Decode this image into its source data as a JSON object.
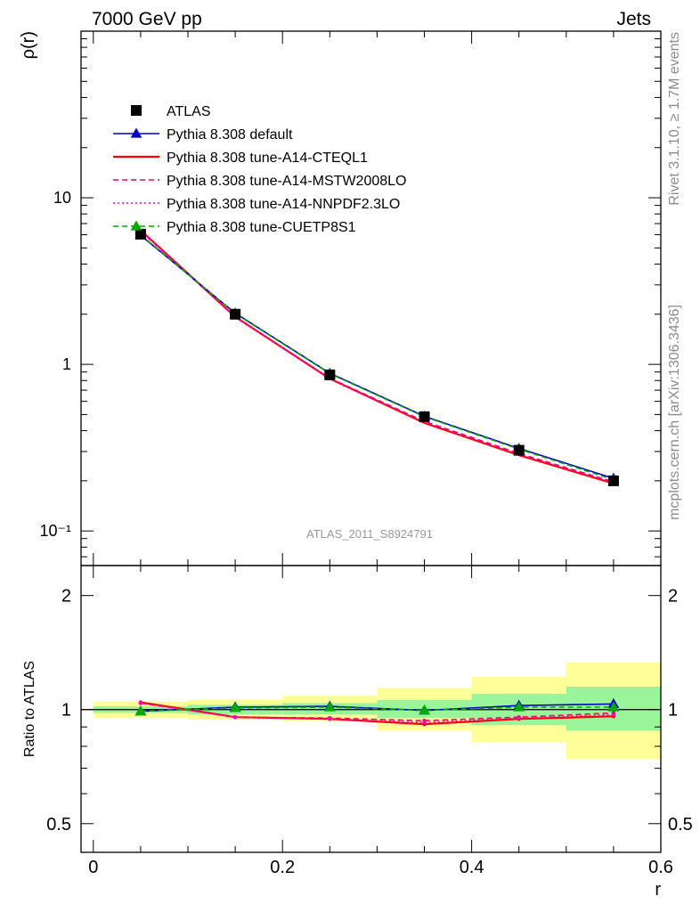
{
  "header": {
    "left": "7000 GeV pp",
    "right": "Jets"
  },
  "side_labels": {
    "upper": "Rivet 3.1.10, ≥ 1.7M events",
    "lower": "mcplots.cern.ch [arXiv:1306.3436]"
  },
  "watermark": "ATLAS_2011_S8924791",
  "chart_data": [
    {
      "type": "line",
      "ylabel": "ρ(r)",
      "xlabel": "",
      "yscale": "log",
      "xlim": [
        -0.013,
        0.6
      ],
      "ylim": [
        0.062,
        100
      ],
      "yticks_major": [
        0.1,
        1,
        10
      ],
      "ytick_labels": [
        "10⁻¹",
        "1",
        "10"
      ],
      "legend_position": "upper-left",
      "x": [
        0.05,
        0.15,
        0.25,
        0.35,
        0.45,
        0.55
      ],
      "series": [
        {
          "name": "ATLAS",
          "color": "#000000",
          "style": "marker-square",
          "values": [
            6.05,
            2.0,
            0.865,
            0.485,
            0.305,
            0.2
          ]
        },
        {
          "name": "Pythia 8.308 default",
          "color": "#0000cc",
          "style": "solid-triangle",
          "values": [
            5.95,
            2.03,
            0.885,
            0.488,
            0.313,
            0.207
          ]
        },
        {
          "name": "Pythia 8.308 tune-A14-CTEQL1",
          "color": "#ff0000",
          "style": "solid",
          "values": [
            6.38,
            1.93,
            0.82,
            0.445,
            0.285,
            0.193
          ]
        },
        {
          "name": "Pythia 8.308 tune-A14-MSTW2008LO",
          "color": "#ff0066",
          "style": "dashed",
          "values": [
            6.3,
            1.93,
            0.825,
            0.455,
            0.292,
            0.197
          ]
        },
        {
          "name": "Pythia 8.308 tune-A14-NNPDF2.3LO",
          "color": "#ff00cc",
          "style": "dotted",
          "values": [
            6.35,
            1.92,
            0.82,
            0.45,
            0.288,
            0.195
          ]
        },
        {
          "name": "Pythia 8.308 tune-CUETP8S1",
          "color": "#00aa00",
          "style": "dashed-triangle",
          "values": [
            6.0,
            2.02,
            0.88,
            0.485,
            0.31,
            0.203
          ]
        }
      ]
    },
    {
      "type": "line",
      "ylabel": "Ratio to ATLAS",
      "xlabel": "r",
      "yscale": "log",
      "xlim": [
        -0.013,
        0.6
      ],
      "ylim": [
        0.42,
        2.4
      ],
      "yticks_major": [
        0.5,
        1,
        2
      ],
      "ytick_labels": [
        "0.5",
        "1",
        "2"
      ],
      "xticks": [
        0,
        0.2,
        0.4,
        0.6
      ],
      "xtick_labels": [
        "0",
        "0.2",
        "0.4",
        "0.6"
      ],
      "x": [
        0.05,
        0.15,
        0.25,
        0.35,
        0.45,
        0.55
      ],
      "bands": {
        "x_edges": [
          0.0,
          0.1,
          0.2,
          0.3,
          0.4,
          0.5,
          0.6
        ],
        "inner": [
          [
            0.98,
            1.02
          ],
          [
            0.97,
            1.03
          ],
          [
            0.97,
            1.04
          ],
          [
            0.95,
            1.06
          ],
          [
            0.91,
            1.1
          ],
          [
            0.88,
            1.15
          ]
        ],
        "outer": [
          [
            0.95,
            1.05
          ],
          [
            0.94,
            1.06
          ],
          [
            0.93,
            1.09
          ],
          [
            0.88,
            1.14
          ],
          [
            0.82,
            1.22
          ],
          [
            0.74,
            1.33
          ]
        ],
        "inner_color": "#99f599",
        "outer_color": "#ffff99"
      },
      "series": [
        {
          "name": "Pythia 8.308 default",
          "color": "#0000cc",
          "values": [
            0.99,
            1.015,
            1.02,
            0.995,
            1.025,
            1.035
          ]
        },
        {
          "name": "Pythia 8.308 tune-A14-CTEQL1",
          "color": "#ff0000",
          "values": [
            1.045,
            0.955,
            0.945,
            0.915,
            0.945,
            0.96
          ]
        },
        {
          "name": "Pythia 8.308 tune-A14-MSTW2008LO",
          "color": "#ff0066",
          "values": [
            1.04,
            0.955,
            0.95,
            0.935,
            0.955,
            0.98
          ]
        },
        {
          "name": "Pythia 8.308 tune-A14-NNPDF2.3LO",
          "color": "#ff00cc",
          "values": [
            1.04,
            0.955,
            0.945,
            0.925,
            0.95,
            0.97
          ]
        },
        {
          "name": "Pythia 8.308 tune-CUETP8S1",
          "color": "#00aa00",
          "values": [
            0.99,
            1.01,
            1.015,
            0.995,
            1.015,
            1.015
          ]
        }
      ]
    }
  ]
}
